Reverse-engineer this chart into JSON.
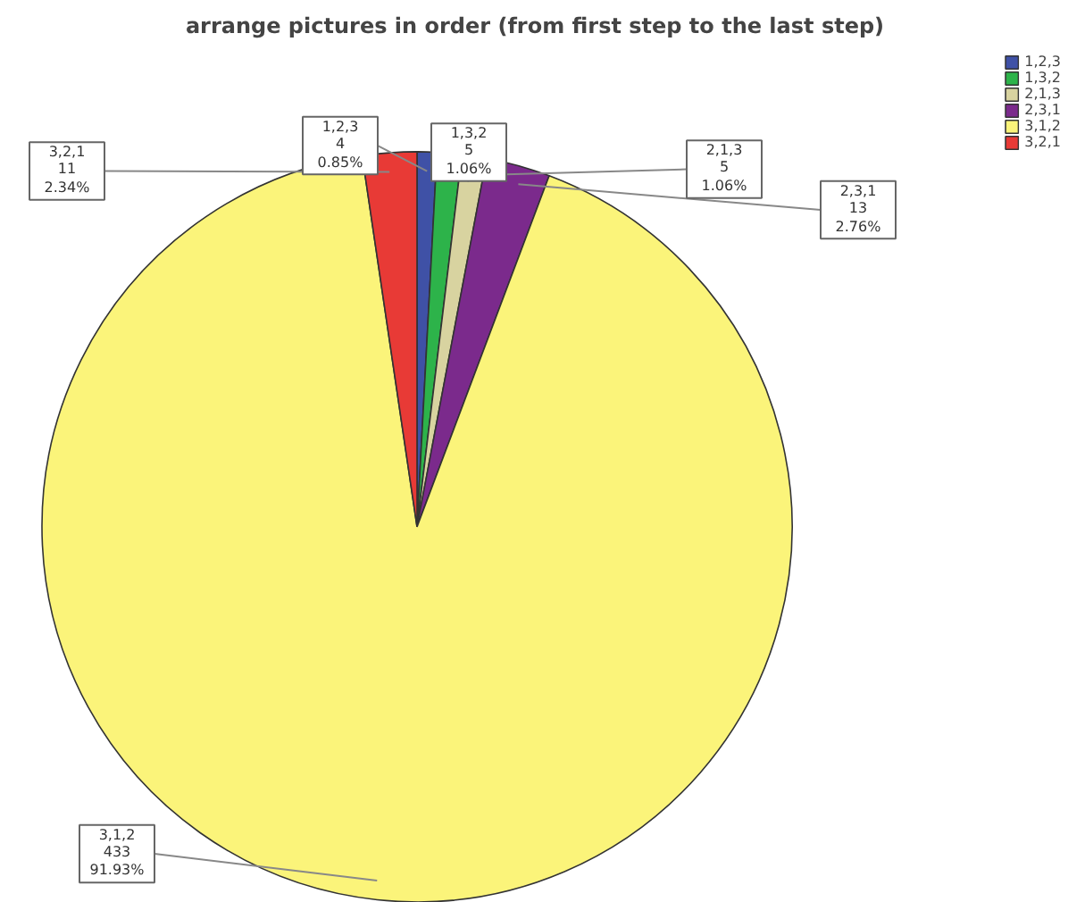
{
  "chart_data": {
    "type": "pie",
    "title": "arrange pictures in order (from first step to the last step)",
    "categories": [
      "1,2,3",
      "1,3,2",
      "2,1,3",
      "2,3,1",
      "3,1,2",
      "3,2,1"
    ],
    "values": [
      4,
      5,
      5,
      13,
      433,
      11
    ],
    "value_labels": [
      "4\n0.85%",
      "5\n1.06%",
      "5\n1.06%",
      "13\n2.76%",
      "433\n91.93%",
      "11\n2.34%"
    ],
    "colors": [
      "#3f51a6",
      "#2db34a",
      "#d8d3a0",
      "#7b2a8c",
      "#fbf47a",
      "#e83a36"
    ],
    "legend": "top right"
  }
}
